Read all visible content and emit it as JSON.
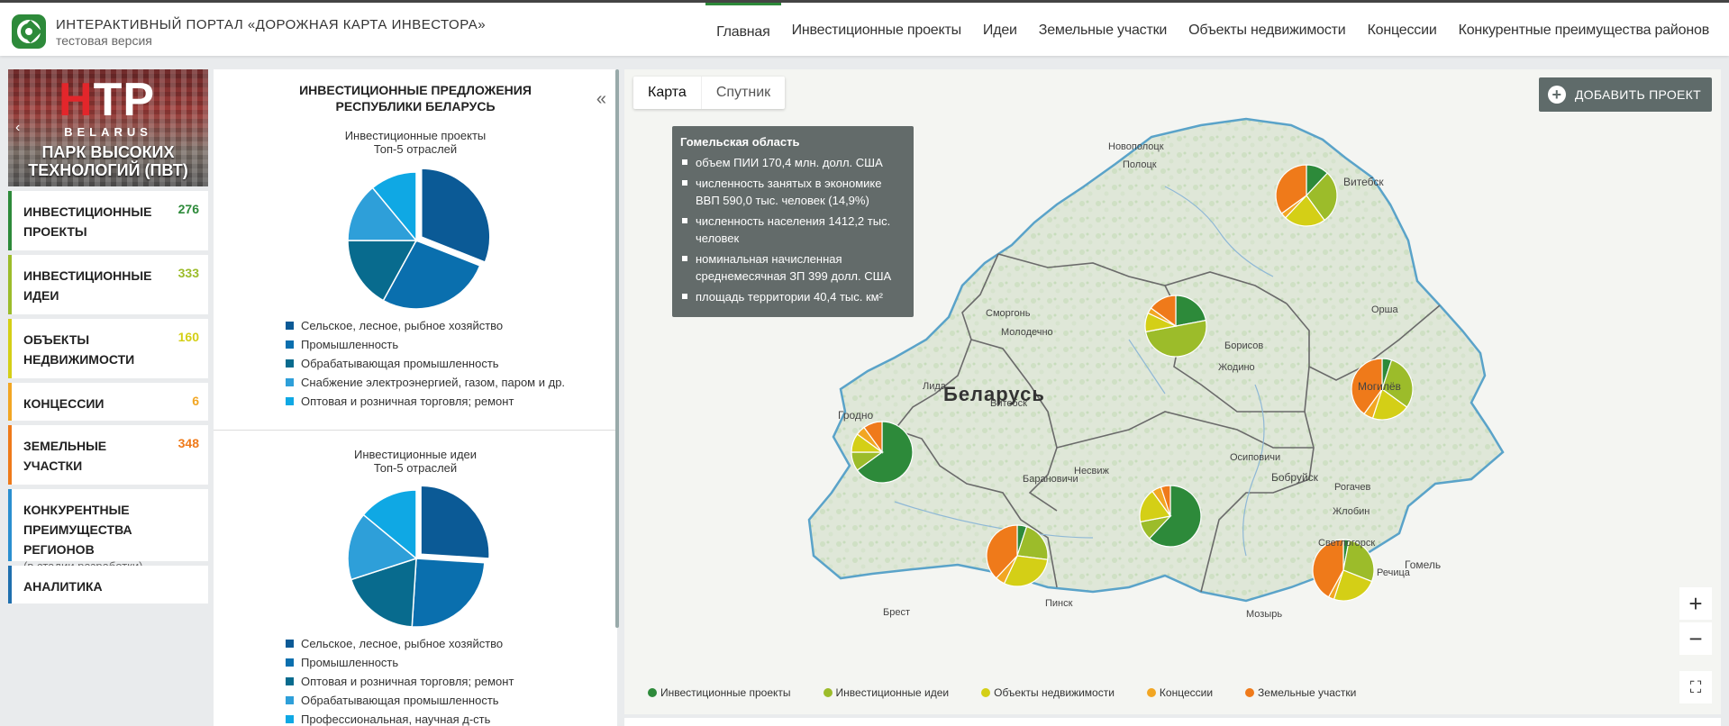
{
  "header": {
    "title": "ИНТЕРАКТИВНЫЙ ПОРТАЛ «ДОРОЖНАЯ КАРТА ИНВЕСТОРА»",
    "subtitle": "тестовая версия",
    "nav": [
      {
        "label": "Главная",
        "active": true
      },
      {
        "label": "Инвестиционные проекты"
      },
      {
        "label": "Идеи"
      },
      {
        "label": "Земельные участки"
      },
      {
        "label": "Объекты недвижимости"
      },
      {
        "label": "Концессии"
      },
      {
        "label": "Конкурентные преимущества районов"
      }
    ]
  },
  "banner": {
    "logo_h": "H",
    "logo_tp": "TP",
    "country": "BELARUS",
    "line1": "ПАРК ВЫСОКИХ",
    "line2": "ТЕХНОЛОГИЙ (ПВТ)",
    "arrow": "‹"
  },
  "sidebar": {
    "items": [
      {
        "label": "ИНВЕСТИЦИОННЫЕ ПРОЕКТЫ",
        "count": "276",
        "color": "#2d8a3a"
      },
      {
        "label": "ИНВЕСТИЦИОННЫЕ ИДЕИ",
        "count": "333",
        "color": "#9cbc2a"
      },
      {
        "label": "ОБЪЕКТЫ НЕДВИЖИМОСТИ",
        "count": "160",
        "color": "#d4cf16"
      },
      {
        "label": "КОНЦЕССИИ",
        "count": "6",
        "color": "#f2a623"
      },
      {
        "label": "ЗЕМЕЛЬНЫЕ УЧАСТКИ",
        "count": "348",
        "color": "#ef7a1a"
      },
      {
        "label": "КОНКУРЕНТНЫЕ ПРЕИМУЩЕСТВА РЕГИОНОВ",
        "note": "(в стадии разработки)",
        "color": "#2a8fd0"
      },
      {
        "label": "АНАЛИТИКА",
        "color": "#1f6fae"
      }
    ]
  },
  "midpanel": {
    "title_line1": "ИНВЕСТИЦИОННЫЕ ПРЕДЛОЖЕНИЯ",
    "title_line2": "РЕСПУБЛИКИ БЕЛАРУСЬ",
    "collapse_icon": "«",
    "projects": {
      "title_line1": "Инвестиционные проекты",
      "title_line2": "Топ-5 отраслей",
      "legend": [
        {
          "label": "Сельское, лесное, рыбное хозяйство",
          "color": "#0b5a96"
        },
        {
          "label": "Промышленность",
          "color": "#0a6fae"
        },
        {
          "label": "Обрабатывающая промышленность",
          "color": "#086b8e"
        },
        {
          "label": "Снабжение электроэнергией, газом, паром и др.",
          "color": "#2e9fd9"
        },
        {
          "label": "Оптовая и розничная торговля; ремонт",
          "color": "#0fa8e4"
        }
      ]
    },
    "ideas": {
      "title_line1": "Инвестиционные идеи",
      "title_line2": "Топ-5 отраслей",
      "legend": [
        {
          "label": "Сельское, лесное, рыбное хозяйство",
          "color": "#0b5a96"
        },
        {
          "label": "Промышленность",
          "color": "#0a6fae"
        },
        {
          "label": "Оптовая и розничная торговля; ремонт",
          "color": "#086b8e"
        },
        {
          "label": "Обрабатывающая промышленность",
          "color": "#2e9fd9"
        },
        {
          "label": "Профессиональная, научная д-сть",
          "color": "#0fa8e4"
        }
      ]
    }
  },
  "map": {
    "tabs": [
      "Карта",
      "Спутник"
    ],
    "add_button": "ДОБАВИТЬ ПРОЕКТ",
    "tooltip": {
      "title": "Гомельская область",
      "rows": [
        "объем ПИИ 170,4 млн. долл. США",
        "численность занятых в экономике ВВП 590,0 тыс. человек (14,9%)",
        "численность населения 1412,2 тыс. человек",
        "номинальная начисленная среднемесячная ЗП 399 долл. США",
        "площадь территории 40,4 тыс. км²"
      ]
    },
    "country": "Беларусь",
    "cities": [
      "Новополоцк",
      "Полоцк",
      "Витебск",
      "Орша",
      "Сморгонь",
      "Молодечно",
      "Борисов",
      "Жодино",
      "Могилёв",
      "Лида",
      "Гродно",
      "Барановичи",
      "Несвиж",
      "Осиповичи",
      "Бобруйск",
      "Рогачев",
      "Жлобин",
      "Светлогорск",
      "Гомель",
      "Речица",
      "Пинск",
      "Брест",
      "Мозырь",
      "Витебск"
    ],
    "legend": [
      {
        "label": "Инвестиционные проекты",
        "color": "#2d8a3a"
      },
      {
        "label": "Инвестиционные идеи",
        "color": "#9cbc2a"
      },
      {
        "label": "Объекты недвижимости",
        "color": "#d4cf16"
      },
      {
        "label": "Концессии",
        "color": "#f2a623"
      },
      {
        "label": "Земельные участки",
        "color": "#ef7a1a"
      }
    ]
  }
}
